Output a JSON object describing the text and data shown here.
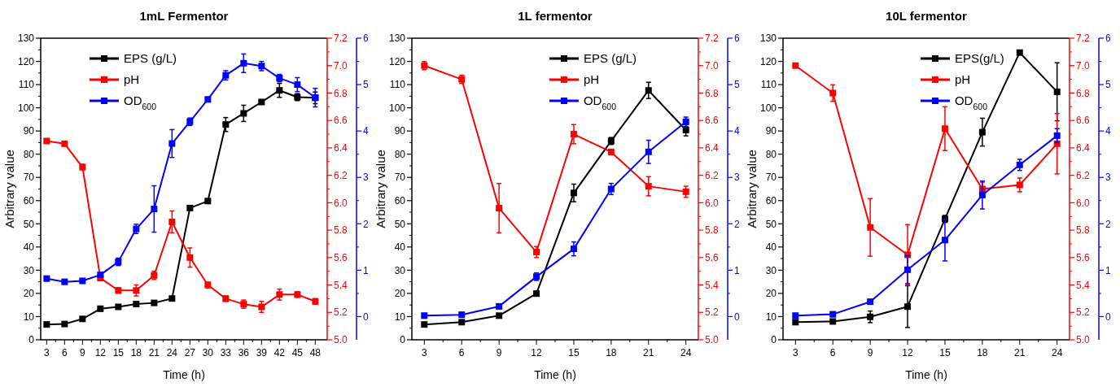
{
  "chart_data": [
    {
      "type": "line",
      "title": "1mL Fermentor",
      "xlabel": "Time (h)",
      "ylabel": "Arbitrary value",
      "legend": "top left",
      "marker": "square",
      "line_style": "solid",
      "grid": false,
      "x": [
        3,
        6,
        9,
        12,
        15,
        18,
        21,
        24,
        27,
        30,
        33,
        36,
        39,
        42,
        45,
        48
      ],
      "xlim": [
        2,
        50
      ],
      "xticks": [
        3,
        6,
        9,
        12,
        15,
        18,
        21,
        24,
        27,
        30,
        33,
        36,
        39,
        42,
        45,
        48
      ],
      "ylim": [
        0,
        130
      ],
      "yticks": [
        0,
        10,
        20,
        30,
        40,
        50,
        60,
        70,
        80,
        90,
        100,
        110,
        120,
        130
      ],
      "y2lim": [
        5,
        7.2
      ],
      "y2ticks": [
        {
          "value": 5,
          "label": "5.0"
        },
        5.2,
        5.4,
        5.6,
        5.8,
        {
          "value": 6,
          "label": "6.0"
        },
        6.2,
        6.4,
        6.6,
        6.8,
        {
          "value": 7,
          "label": "7.0"
        },
        7.2
      ],
      "y3lim": [
        -0.5,
        6
      ],
      "y3ticks": [
        0,
        1,
        2,
        3,
        4,
        5,
        6
      ],
      "series": [
        {
          "name": "EPS (g/L)",
          "color": "#000000",
          "values": [
            6.6,
            6.8,
            9,
            13.4,
            14.2,
            15.4,
            15.9,
            17.8,
            56.8,
            59.8,
            92.8,
            97.6,
            102.5,
            107.5,
            104.6,
            104.3
          ],
          "errors": [
            0.8,
            0.8,
            0.8,
            1,
            0.8,
            0.8,
            0.8,
            0.8,
            0.8,
            0.8,
            3,
            3.5,
            1,
            3,
            1.5,
            2.5
          ]
        },
        {
          "name": "pH",
          "color": "#ff0000",
          "axis": "y2",
          "values": [
            6.45,
            6.43,
            6.26,
            5.45,
            5.36,
            5.36,
            5.47,
            5.86,
            5.6,
            5.4,
            5.3,
            5.26,
            5.24,
            5.33,
            5.33,
            5.28
          ],
          "errors": [
            0.01,
            0.01,
            0.02,
            0.01,
            0.02,
            0.04,
            0.03,
            0.08,
            0.07,
            0.02,
            0.02,
            0.03,
            0.04,
            0.04,
            0.02,
            0.02
          ]
        },
        {
          "name": "OD$_{600}$",
          "color": "#0000ff",
          "axis": "y3",
          "values": [
            0.82,
            0.75,
            0.77,
            0.9,
            1.18,
            1.89,
            2.32,
            3.73,
            4.2,
            4.68,
            5.2,
            5.46,
            5.4,
            5.14,
            5,
            4.72
          ],
          "errors": [
            0.05,
            0.05,
            0.05,
            0.05,
            0.08,
            0.1,
            0.5,
            0.3,
            0.08,
            0.05,
            0.1,
            0.2,
            0.1,
            0.08,
            0.15,
            0.2
          ]
        }
      ]
    },
    {
      "type": "line",
      "title": "1L fermentor",
      "xlabel": "Time (h)",
      "ylabel": "Arbitrary value",
      "legend": "top",
      "marker": "square",
      "line_style": "solid",
      "grid": false,
      "x": [
        3,
        6,
        9,
        12,
        15,
        18,
        21,
        24
      ],
      "xlim": [
        2,
        25
      ],
      "xticks": [
        3,
        6,
        9,
        12,
        15,
        18,
        21,
        24
      ],
      "ylim": [
        0,
        130
      ],
      "yticks": [
        0,
        10,
        20,
        30,
        40,
        50,
        60,
        70,
        80,
        90,
        100,
        110,
        120,
        130
      ],
      "y2lim": [
        5,
        7.2
      ],
      "y2ticks": [
        {
          "value": 5,
          "label": "5.0"
        },
        5.2,
        5.4,
        5.6,
        5.8,
        {
          "value": 6,
          "label": "6.0"
        },
        6.2,
        6.4,
        6.6,
        6.8,
        {
          "value": 7,
          "label": "7.0"
        },
        7.2
      ],
      "y3lim": [
        -0.5,
        6
      ],
      "y3ticks": [
        0,
        1,
        2,
        3,
        4,
        5,
        6
      ],
      "series": [
        {
          "name": "EPS (g/L)",
          "color": "#000000",
          "values": [
            6.6,
            7.6,
            10.4,
            19.9,
            63.3,
            85.7,
            107.5,
            90.4
          ],
          "errors": [
            0.5,
            0.5,
            0.5,
            1,
            3.8,
            1.5,
            3.5,
            2.5
          ]
        },
        {
          "name": "pH",
          "color": "#ff0000",
          "axis": "y2",
          "values": [
            7,
            6.9,
            5.96,
            5.64,
            6.5,
            6.37,
            6.12,
            6.08
          ],
          "errors": [
            0.03,
            0.03,
            0.18,
            0.04,
            0.07,
            0.02,
            0.07,
            0.04
          ]
        },
        {
          "name": "OD$_{600}$",
          "color": "#0000ff",
          "axis": "y3",
          "values": [
            0.02,
            0.04,
            0.22,
            0.86,
            1.46,
            2.75,
            3.55,
            4.2
          ],
          "errors": [
            0.05,
            0.05,
            0.05,
            0.08,
            0.15,
            0.12,
            0.25,
            0.1
          ]
        }
      ]
    },
    {
      "type": "line",
      "title": "10L fermentor",
      "xlabel": "Time (h)",
      "ylabel": "Arbitrary value",
      "legend": "top",
      "marker": "square",
      "line_style": "solid",
      "grid": false,
      "x": [
        3,
        6,
        9,
        12,
        15,
        18,
        21,
        24
      ],
      "xlim": [
        2,
        25
      ],
      "xticks": [
        3,
        6,
        9,
        12,
        15,
        18,
        21,
        24
      ],
      "ylim": [
        0,
        130
      ],
      "yticks": [
        0,
        10,
        20,
        30,
        40,
        50,
        60,
        70,
        80,
        90,
        100,
        110,
        120,
        130
      ],
      "y2lim": [
        5,
        7.2
      ],
      "y2ticks": [
        {
          "value": 5,
          "label": "5.0"
        },
        5.2,
        5.4,
        5.6,
        5.8,
        {
          "value": 6,
          "label": "6.0"
        },
        6.2,
        6.4,
        6.6,
        6.8,
        {
          "value": 7,
          "label": "7.0"
        },
        7.2
      ],
      "y3lim": [
        -0.5,
        6
      ],
      "y3ticks": [
        0,
        1,
        2,
        3,
        4,
        5,
        6
      ],
      "series": [
        {
          "name": "EPS(g/L)",
          "color": "#000000",
          "values": [
            7.6,
            7.9,
            9.9,
            14.3,
            52.1,
            89.5,
            123.8,
            106.9
          ],
          "errors": [
            0.8,
            0.8,
            2.5,
            9,
            1.5,
            6,
            0.8,
            12.5
          ]
        },
        {
          "name": "pH",
          "color": "#ff0000",
          "axis": "y2",
          "values": [
            7,
            6.8,
            5.82,
            5.62,
            6.54,
            6.1,
            6.13,
            6.43
          ],
          "errors": [
            0.01,
            0.06,
            0.21,
            0.22,
            0.16,
            0.05,
            0.05,
            0.22
          ]
        },
        {
          "name": "OD$_{600}$",
          "color": "#0000ff",
          "axis": "y3",
          "values": [
            0.02,
            0.05,
            0.32,
            1.01,
            1.65,
            2.62,
            3.27,
            3.9
          ],
          "errors": [
            0.05,
            0.05,
            0.05,
            0.3,
            0.45,
            0.3,
            0.12,
            0.15
          ]
        }
      ]
    }
  ]
}
